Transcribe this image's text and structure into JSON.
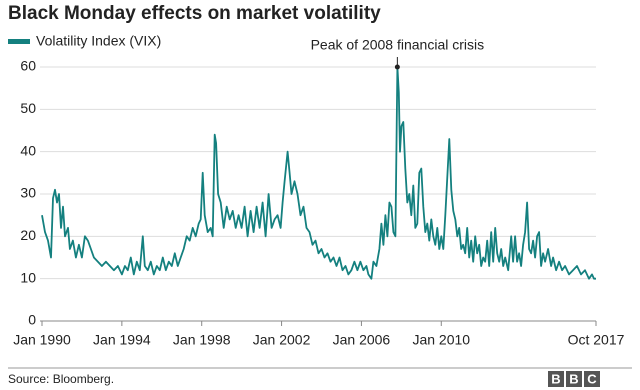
{
  "chart_data": {
    "type": "line",
    "title": "Black Monday effects on market volatility",
    "annotation": "Peak of 2008 financial crisis",
    "source": "Source: Bloomberg.",
    "logo": [
      "B",
      "B",
      "C"
    ],
    "x": [
      1990.0,
      1990.15,
      1990.3,
      1990.45,
      1990.55,
      1990.65,
      1990.75,
      1990.85,
      1990.95,
      1991.05,
      1991.15,
      1991.3,
      1991.4,
      1991.55,
      1991.7,
      1991.85,
      1992.0,
      1992.15,
      1992.3,
      1992.45,
      1992.6,
      1992.8,
      1993.0,
      1993.2,
      1993.4,
      1993.6,
      1993.8,
      1994.0,
      1994.15,
      1994.3,
      1994.45,
      1994.6,
      1994.75,
      1994.9,
      1995.05,
      1995.15,
      1995.3,
      1995.45,
      1995.6,
      1995.75,
      1995.9,
      1996.05,
      1996.2,
      1996.35,
      1996.5,
      1996.65,
      1996.8,
      1996.95,
      1997.1,
      1997.25,
      1997.4,
      1997.55,
      1997.7,
      1997.85,
      1997.95,
      1998.05,
      1998.15,
      1998.3,
      1998.45,
      1998.55,
      1998.65,
      1998.72,
      1998.82,
      1998.95,
      1999.1,
      1999.25,
      1999.4,
      1999.55,
      1999.7,
      1999.85,
      2000.0,
      2000.15,
      2000.3,
      2000.45,
      2000.6,
      2000.75,
      2000.9,
      2001.05,
      2001.2,
      2001.35,
      2001.5,
      2001.65,
      2001.8,
      2001.95,
      2002.05,
      2002.15,
      2002.3,
      2002.4,
      2002.5,
      2002.65,
      2002.8,
      2002.95,
      2003.1,
      2003.25,
      2003.4,
      2003.55,
      2003.7,
      2003.85,
      2004.0,
      2004.15,
      2004.3,
      2004.45,
      2004.6,
      2004.75,
      2004.9,
      2005.05,
      2005.2,
      2005.35,
      2005.5,
      2005.65,
      2005.8,
      2005.95,
      2006.1,
      2006.25,
      2006.35,
      2006.5,
      2006.6,
      2006.75,
      2006.9,
      2007.0,
      2007.1,
      2007.2,
      2007.3,
      2007.4,
      2007.5,
      2007.6,
      2007.7,
      2007.8,
      2007.87,
      2007.93,
      2008.0,
      2008.1,
      2008.2,
      2008.3,
      2008.4,
      2008.5,
      2008.6,
      2008.7,
      2008.8,
      2008.9,
      2009.0,
      2009.1,
      2009.2,
      2009.3,
      2009.4,
      2009.5,
      2009.6,
      2009.7,
      2009.8,
      2009.9,
      2010.0,
      2010.1,
      2010.2,
      2010.4,
      2010.5,
      2010.6,
      2010.7,
      2010.8,
      2010.9,
      2011.0,
      2011.1,
      2011.2,
      2011.3,
      2011.4,
      2011.5,
      2011.6,
      2011.7,
      2011.8,
      2011.9,
      2012.0,
      2012.1,
      2012.2,
      2012.3,
      2012.4,
      2012.5,
      2012.6,
      2012.7,
      2012.8,
      2012.9,
      2013.0,
      2013.1,
      2013.2,
      2013.35,
      2013.5,
      2013.6,
      2013.7,
      2013.8,
      2013.9,
      2014.0,
      2014.1,
      2014.2,
      2014.3,
      2014.4,
      2014.5,
      2014.6,
      2014.7,
      2014.8,
      2014.9,
      2015.0,
      2015.1,
      2015.2,
      2015.35,
      2015.5,
      2015.6,
      2015.75,
      2015.9,
      2016.05,
      2016.2,
      2016.4,
      2016.6,
      2016.8,
      2017.0,
      2017.2,
      2017.4,
      2017.55,
      2017.65,
      2017.75
    ],
    "series": [
      {
        "name": "Volatility Index (VIX)",
        "color": "#14807f",
        "values": [
          25,
          21,
          19,
          15,
          29,
          31,
          28,
          30,
          22,
          27,
          20,
          22,
          17,
          19,
          15,
          18,
          15,
          20,
          19,
          17,
          15,
          14,
          13,
          14,
          13,
          12,
          13,
          11,
          13,
          12,
          15,
          11,
          14,
          12,
          20,
          13,
          12,
          14,
          11,
          13,
          12,
          15,
          12,
          14,
          13,
          16,
          13,
          15,
          17,
          20,
          19,
          22,
          20,
          23,
          24,
          35,
          25,
          21,
          22,
          20,
          44,
          42,
          30,
          28,
          22,
          27,
          24,
          26,
          22,
          25,
          22,
          27,
          20,
          26,
          21,
          27,
          22,
          28,
          20,
          30,
          22,
          24,
          25,
          22,
          28,
          33,
          40,
          35,
          30,
          33,
          30,
          25,
          27,
          22,
          21,
          18,
          19,
          16,
          17,
          15,
          16,
          14,
          15,
          13,
          15,
          12,
          13,
          11,
          12,
          14,
          12,
          14,
          12,
          13,
          11,
          10,
          14,
          13,
          17,
          23,
          18,
          25,
          20,
          28,
          27,
          21,
          20,
          60,
          54,
          40,
          46,
          47,
          36,
          28,
          30,
          25,
          32,
          22,
          23,
          35,
          36,
          27,
          21,
          23,
          19,
          24,
          20,
          18,
          22,
          17,
          20,
          17,
          25,
          43,
          31,
          26,
          24,
          20,
          22,
          17,
          18,
          16,
          22,
          15,
          19,
          14,
          20,
          16,
          18,
          13,
          15,
          14,
          19,
          13,
          21,
          14,
          22,
          16,
          14,
          17,
          13,
          15,
          12,
          20,
          14,
          20,
          14,
          16,
          13,
          18,
          21,
          28,
          17,
          16,
          19,
          15,
          20,
          21,
          13,
          16,
          14,
          17,
          13,
          15,
          12,
          14,
          12,
          13,
          11,
          12,
          13,
          11,
          12,
          10,
          11,
          10,
          10
        ]
      }
    ],
    "xlim": [
      1990,
      2017.75
    ],
    "xticks": [
      {
        "value": 1990,
        "label": "Jan 1990"
      },
      {
        "value": 1994,
        "label": "Jan 1994"
      },
      {
        "value": 1998,
        "label": "Jan 1998"
      },
      {
        "value": 2002,
        "label": "Jan 2002"
      },
      {
        "value": 2006,
        "label": "Jan 2006"
      },
      {
        "value": 2010,
        "label": "Jan 2010"
      },
      {
        "value": 2017.75,
        "label": "Oct 2017"
      }
    ],
    "ylim": [
      0,
      60
    ],
    "yticks": [
      0,
      10,
      20,
      30,
      40,
      50,
      60
    ],
    "grid": true
  }
}
